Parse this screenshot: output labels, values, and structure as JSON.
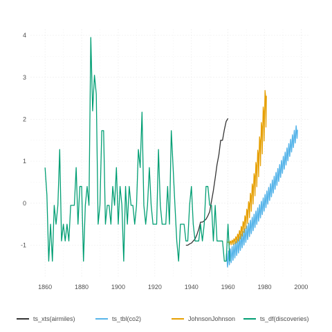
{
  "chart_data": {
    "type": "line",
    "title": "",
    "xlabel": "",
    "ylabel": "",
    "xlim": [
      1852,
      2004
    ],
    "ylim": [
      -1.75,
      4.15
    ],
    "x_ticks": [
      1860,
      1880,
      1900,
      1920,
      1940,
      1960,
      1980,
      2000
    ],
    "y_ticks": [
      -1,
      0,
      1,
      2,
      3,
      4
    ],
    "grid": true,
    "legend_position": "bottom",
    "series": [
      {
        "name": "ts_xts(airmiles)",
        "color": "#333333",
        "points": [
          [
            1937,
            -1.0
          ],
          [
            1938,
            -1.0
          ],
          [
            1939,
            -0.97
          ],
          [
            1940,
            -0.95
          ],
          [
            1941,
            -0.9
          ],
          [
            1942,
            -0.85
          ],
          [
            1943,
            -0.75
          ],
          [
            1944,
            -0.62
          ],
          [
            1945,
            -0.45
          ],
          [
            1946,
            -0.45
          ],
          [
            1947,
            -0.42
          ],
          [
            1948,
            -0.38
          ],
          [
            1949,
            -0.3
          ],
          [
            1950,
            -0.2
          ],
          [
            1951,
            0.05
          ],
          [
            1952,
            0.3
          ],
          [
            1953,
            0.6
          ],
          [
            1954,
            0.92
          ],
          [
            1955,
            1.15
          ],
          [
            1956,
            1.5
          ],
          [
            1957,
            1.5
          ],
          [
            1958,
            1.75
          ],
          [
            1959,
            1.95
          ],
          [
            1960,
            2.02
          ]
        ]
      },
      {
        "name": "ts_tbl(co2)",
        "color": "#56B4E9",
        "start": 1959,
        "end": 1998,
        "trend_start": -1.38,
        "trend_end": 1.75,
        "trend_curvature": 0.38,
        "seasonal_amplitude": 0.18
      },
      {
        "name": "JohnsonJohnson",
        "color": "#E69F00",
        "start": 1960,
        "end": 1981,
        "trend_start": -0.95,
        "trend_end": 2.45,
        "trend_power": 2.4,
        "seasonal_amplitude_start": 0.04,
        "seasonal_amplitude_end": 0.55
      },
      {
        "name": "ts_df(discoveries)",
        "color": "#009E73",
        "start": 1860,
        "values": [
          0.85,
          0.2,
          -1.38,
          -0.5,
          -1.38,
          -0.05,
          -0.5,
          -0.05,
          1.28,
          -0.9,
          -0.5,
          -0.9,
          -0.5,
          -0.9,
          -0.05,
          -0.05,
          -0.05,
          0.85,
          -0.5,
          0.4,
          0.4,
          -1.38,
          -0.05,
          0.4,
          -0.05,
          3.95,
          2.2,
          3.05,
          2.6,
          -0.5,
          -0.05,
          1.73,
          1.73,
          -0.5,
          -0.05,
          -0.05,
          -0.5,
          0.4,
          -0.05,
          0.85,
          -0.5,
          0.4,
          -0.05,
          -1.38,
          0.4,
          -0.5,
          0.4,
          -0.05,
          -0.05,
          -0.5,
          -0.05,
          1.28,
          0.85,
          2.17,
          -0.05,
          -0.5,
          -0.05,
          0.85,
          -0.05,
          -0.5,
          -0.5,
          -0.5,
          1.28,
          -0.05,
          -0.5,
          -0.5,
          -0.5,
          0.4,
          -0.5,
          1.73,
          0.85,
          -0.05,
          -0.9,
          -1.38,
          -0.5,
          -0.5,
          -0.5,
          -0.9,
          -0.9,
          -0.05,
          0.4,
          -0.5,
          -0.9,
          -0.9,
          -0.9,
          -0.5,
          -0.9,
          -0.5,
          0.4,
          0.4,
          -0.05,
          -0.05,
          -0.9,
          -0.05,
          -0.9,
          -0.9,
          -0.9,
          -0.9,
          -1.38,
          -1.38,
          -0.5,
          -1.38
        ]
      }
    ]
  }
}
